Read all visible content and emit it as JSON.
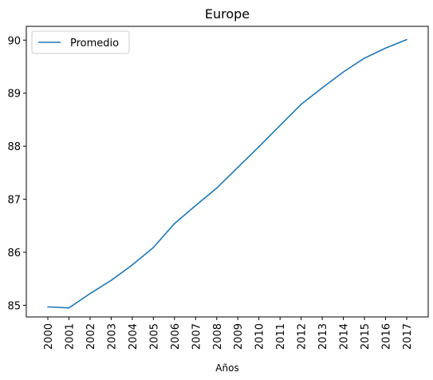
{
  "chart_data": {
    "type": "line",
    "title": "Europe",
    "xlabel": "Años",
    "ylabel": "",
    "x": [
      "2000",
      "2001",
      "2002",
      "2003",
      "2004",
      "2005",
      "2006",
      "2007",
      "2008",
      "2009",
      "2010",
      "2011",
      "2012",
      "2013",
      "2014",
      "2015",
      "2016",
      "2017"
    ],
    "series": [
      {
        "name": "Promedio",
        "color": "#1f77b4",
        "values": [
          84.97,
          84.95,
          85.22,
          85.47,
          85.76,
          86.09,
          86.54,
          86.88,
          87.21,
          87.6,
          87.99,
          88.39,
          88.79,
          89.1,
          89.4,
          89.66,
          89.85,
          90.01
        ]
      }
    ],
    "ylim": [
      84.78,
      90.26
    ],
    "yticks": [
      85,
      86,
      87,
      88,
      89,
      90
    ],
    "grid": false,
    "legend": "upper-left"
  }
}
